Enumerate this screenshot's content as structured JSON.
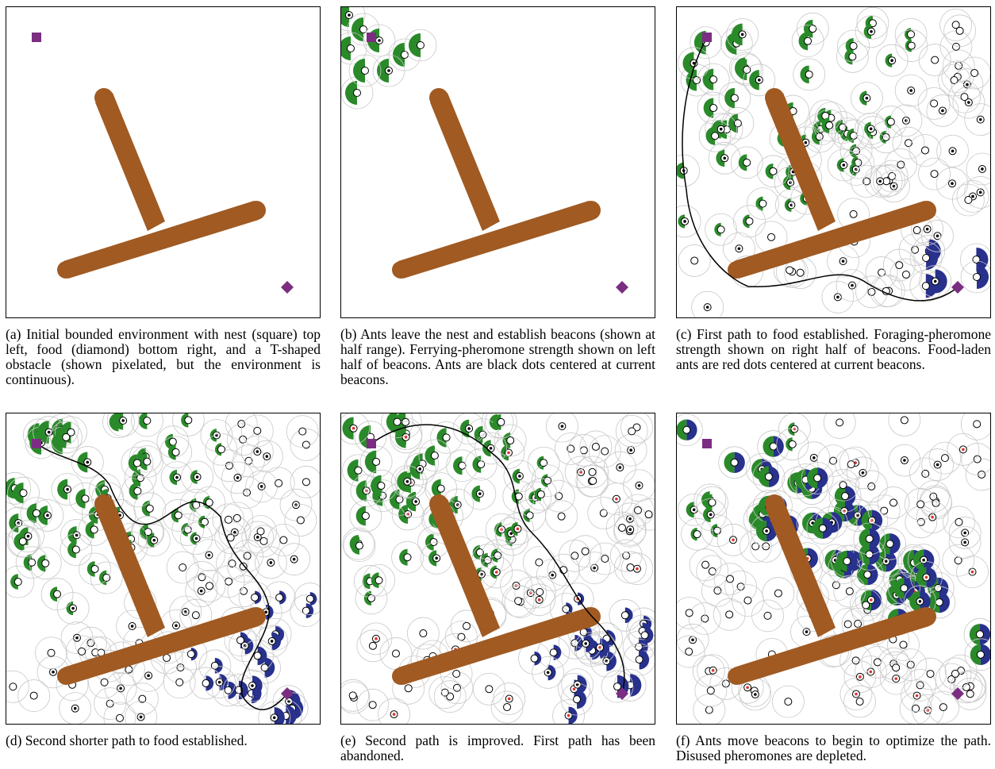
{
  "figure": {
    "colors": {
      "obstacle": "#a05a22",
      "nest": "#7b2d82",
      "food": "#7b2d82",
      "foraging_pheromone": "#2a8a2a",
      "ferrying_pheromone": "#28318c",
      "beacon_ring": "#c8c8c8",
      "laden_ant": "#e0302a"
    },
    "panels": [
      {
        "id": "a",
        "caption": "(a) Initial bounded environment with nest (square) top left, food (diamond) bottom right, and a T-shaped obstacle (shown pixelated, but the environment is continuous).",
        "beacons": 0,
        "stage": "empty"
      },
      {
        "id": "b",
        "caption": "(b) Ants leave the nest and establish beacons (shown at half range). Ferrying-pheromone strength shown on left half of beacons. Ants are black dots centered at current beacons.",
        "beacons": 9,
        "stage": "cluster"
      },
      {
        "id": "c",
        "caption": "(c) First path to food established. Foraging-pheromone strength shown on right half of beacons. Food-laden ants are red dots centered at current beacons.",
        "beacons": 120,
        "stage": "path1"
      },
      {
        "id": "d",
        "caption": "(d) Second shorter path to food established.",
        "beacons": 150,
        "stage": "path2"
      },
      {
        "id": "e",
        "caption": "(e) Second path is improved. First path has been abandoned.",
        "beacons": 150,
        "stage": "path3"
      },
      {
        "id": "f",
        "caption": "(f) Ants move beacons to begin to optimize the path. Disused pheromones are depleted.",
        "beacons": 150,
        "stage": "optimize"
      }
    ]
  }
}
